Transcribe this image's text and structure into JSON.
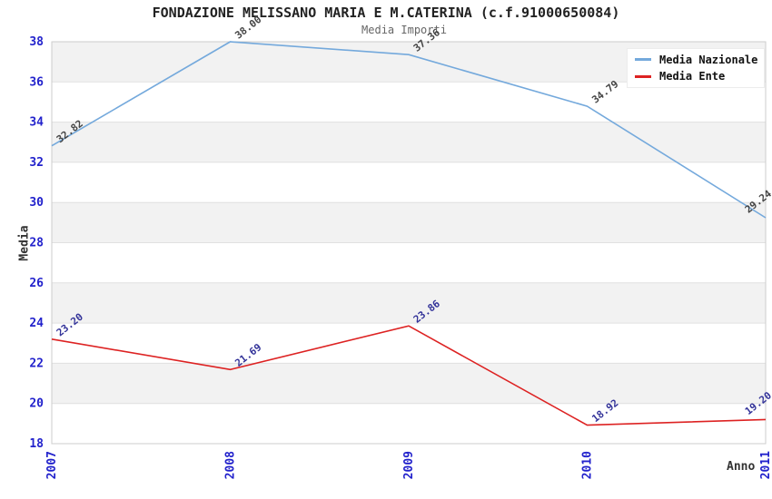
{
  "chart_data": {
    "type": "line",
    "title": "FONDAZIONE MELISSANO MARIA E M.CATERINA (c.f.91000650084)",
    "subtitle": "Media Importi",
    "xlabel": "Anno",
    "ylabel": "Media",
    "x": [
      "2007",
      "2008",
      "2009",
      "2010",
      "2011"
    ],
    "ylim": [
      18,
      38
    ],
    "ytick_step": 2,
    "grid": true,
    "banded_background": true,
    "legend_position": "top-right",
    "series": [
      {
        "name": "Media Nazionale",
        "color": "#74a9dc",
        "label_color": "#444444",
        "values": [
          32.82,
          38.0,
          37.36,
          34.79,
          29.24
        ]
      },
      {
        "name": "Media Ente",
        "color": "#dd2222",
        "label_color": "#333399",
        "values": [
          23.2,
          21.69,
          23.86,
          18.92,
          19.2
        ]
      }
    ],
    "colors": {
      "axis_tick": "#2222cc",
      "band": "#f2f2f2",
      "grid": "#e0e0e0",
      "plot_border": "#cccccc",
      "title": "#222222",
      "subtitle": "#666666",
      "axis_title": "#333333"
    }
  }
}
